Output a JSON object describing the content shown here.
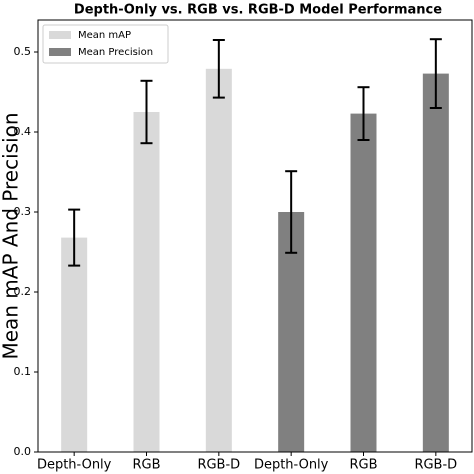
{
  "chart_data": {
    "type": "bar",
    "title": "Depth-Only vs. RGB vs. RGB-D Model Performance",
    "ylabel": "Mean mAP And Precision",
    "categories": [
      "Depth-Only",
      "RGB",
      "RGB-D",
      "Depth-Only",
      "RGB",
      "RGB-D"
    ],
    "series": [
      {
        "name": "Mean mAP",
        "color": "#d9d9d9",
        "values": [
          0.268,
          0.425,
          0.479,
          null,
          null,
          null
        ],
        "errors": [
          0.035,
          0.039,
          0.036,
          null,
          null,
          null
        ]
      },
      {
        "name": "Mean Precision",
        "color": "#808080",
        "values": [
          null,
          null,
          null,
          0.3,
          0.423,
          0.473
        ],
        "errors": [
          null,
          null,
          null,
          0.051,
          0.033,
          0.043
        ]
      }
    ],
    "ylim": [
      0,
      0.54
    ],
    "yticks": [
      {
        "value": 0,
        "label": "0.0"
      },
      0.1,
      0.2,
      0.3,
      0.4,
      0.5
    ],
    "legend": "upper left"
  }
}
